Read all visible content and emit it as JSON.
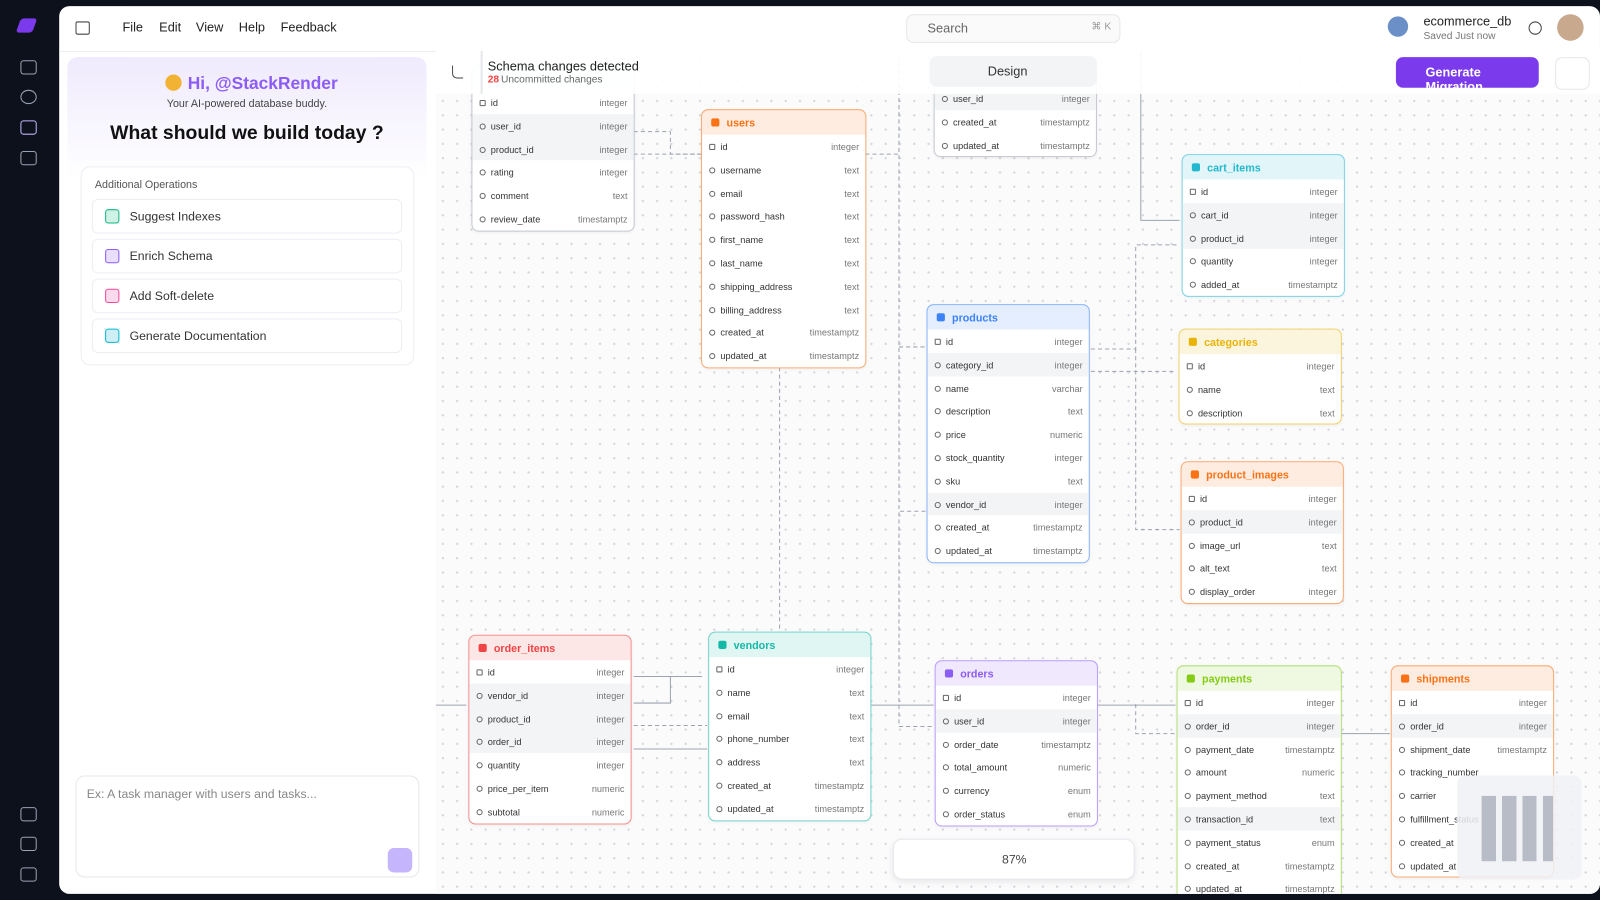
{
  "app_menu": [
    "File",
    "Edit",
    "View",
    "Help",
    "Feedback"
  ],
  "search": {
    "placeholder": "Search",
    "shortcut": "⌘ K"
  },
  "database": {
    "name": "ecommerce_db",
    "status": "Saved Just now"
  },
  "banner": {
    "title": "Schema changes detected",
    "count": 28,
    "count_label": "Uncommitted changes"
  },
  "toolbar": {
    "design": "Design",
    "generate": "Generate Migration",
    "zoom": "87%"
  },
  "assistant": {
    "greeting": "Hi, @StackRender",
    "tagline": "Your AI-powered database buddy.",
    "question": "What should we build today ?",
    "operations_title": "Additional Operations",
    "operations": [
      "Suggest Indexes",
      "Enrich Schema",
      "Add Soft-delete",
      "Generate Documentation"
    ],
    "input_placeholder": "Ex: A task manager with users and tasks..."
  },
  "tables": [
    {
      "color": "#9ca3af",
      "fields": [
        [
          "id",
          "integer"
        ],
        [
          "user_id",
          "integer"
        ],
        [
          "product_id",
          "integer"
        ],
        [
          "rating",
          "integer"
        ],
        [
          "comment",
          "text"
        ],
        [
          "review_date",
          "timestamptz"
        ]
      ]
    },
    {
      "name": "users",
      "color": "#f97316",
      "fields": [
        [
          "id",
          "integer"
        ],
        [
          "username",
          "text"
        ],
        [
          "email",
          "text"
        ],
        [
          "password_hash",
          "text"
        ],
        [
          "first_name",
          "text"
        ],
        [
          "last_name",
          "text"
        ],
        [
          "shipping_address",
          "text"
        ],
        [
          "billing_address",
          "text"
        ],
        [
          "created_at",
          "timestamptz"
        ],
        [
          "updated_at",
          "timestamptz"
        ]
      ]
    },
    {
      "color": "#9ca3af",
      "fields": [
        [
          "user_id",
          "integer"
        ],
        [
          "created_at",
          "timestamptz"
        ],
        [
          "updated_at",
          "timestamptz"
        ]
      ]
    },
    {
      "name": "cart_items",
      "color": "#22b8cf",
      "fields": [
        [
          "id",
          "integer"
        ],
        [
          "cart_id",
          "integer"
        ],
        [
          "product_id",
          "integer"
        ],
        [
          "quantity",
          "integer"
        ],
        [
          "added_at",
          "timestamptz"
        ]
      ]
    },
    {
      "name": "products",
      "color": "#3b82f6",
      "fields": [
        [
          "id",
          "integer"
        ],
        [
          "category_id",
          "integer"
        ],
        [
          "name",
          "varchar"
        ],
        [
          "description",
          "text"
        ],
        [
          "price",
          "numeric"
        ],
        [
          "stock_quantity",
          "integer"
        ],
        [
          "sku",
          "text"
        ],
        [
          "vendor_id",
          "integer"
        ],
        [
          "created_at",
          "timestamptz"
        ],
        [
          "updated_at",
          "timestamptz"
        ]
      ]
    },
    {
      "name": "categories",
      "color": "#eab308",
      "fields": [
        [
          "id",
          "integer"
        ],
        [
          "name",
          "text"
        ],
        [
          "description",
          "text"
        ]
      ]
    },
    {
      "name": "product_images",
      "color": "#f97316",
      "fields": [
        [
          "id",
          "integer"
        ],
        [
          "product_id",
          "integer"
        ],
        [
          "image_url",
          "text"
        ],
        [
          "alt_text",
          "text"
        ],
        [
          "display_order",
          "integer"
        ]
      ]
    },
    {
      "name": "order_items",
      "color": "#ef4444",
      "fields": [
        [
          "id",
          "integer"
        ],
        [
          "vendor_id",
          "integer"
        ],
        [
          "product_id",
          "integer"
        ],
        [
          "order_id",
          "integer"
        ],
        [
          "quantity",
          "integer"
        ],
        [
          "price_per_item",
          "numeric"
        ],
        [
          "subtotal",
          "numeric"
        ]
      ]
    },
    {
      "name": "vendors",
      "color": "#14b8a6",
      "fields": [
        [
          "id",
          "integer"
        ],
        [
          "name",
          "text"
        ],
        [
          "email",
          "text"
        ],
        [
          "phone_number",
          "text"
        ],
        [
          "address",
          "text"
        ],
        [
          "created_at",
          "timestamptz"
        ],
        [
          "updated_at",
          "timestamptz"
        ]
      ]
    },
    {
      "name": "orders",
      "color": "#8b5cf6",
      "fields": [
        [
          "id",
          "integer"
        ],
        [
          "user_id",
          "integer"
        ],
        [
          "order_date",
          "timestamptz"
        ],
        [
          "total_amount",
          "numeric"
        ],
        [
          "currency",
          "enum"
        ],
        [
          "order_status",
          "enum"
        ]
      ]
    },
    {
      "name": "payments",
      "color": "#84cc16",
      "fields": [
        [
          "id",
          "integer"
        ],
        [
          "order_id",
          "integer"
        ],
        [
          "payment_date",
          "timestamptz"
        ],
        [
          "amount",
          "numeric"
        ],
        [
          "payment_method",
          "text"
        ],
        [
          "transaction_id",
          "text"
        ],
        [
          "payment_status",
          "enum"
        ],
        [
          "created_at",
          "timestamptz"
        ],
        [
          "updated_at",
          "timestamptz"
        ]
      ]
    },
    {
      "name": "shipments",
      "color": "#f97316",
      "fields": [
        [
          "id",
          "integer"
        ],
        [
          "order_id",
          "integer"
        ],
        [
          "shipment_date",
          "timestamptz"
        ],
        [
          "tracking_number"
        ],
        [
          "carrier"
        ],
        [
          "fulfillment_status"
        ],
        [
          "created_at"
        ],
        [
          "updated_at"
        ]
      ]
    }
  ]
}
